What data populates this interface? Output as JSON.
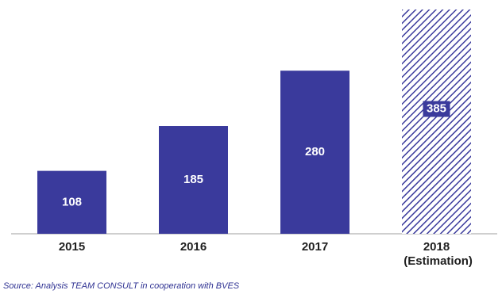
{
  "chart_data": {
    "type": "bar",
    "categories": [
      "2015",
      "2016",
      "2017",
      "2018 (Estimation)"
    ],
    "values": [
      108,
      185,
      280,
      385
    ],
    "hatched": [
      false,
      false,
      false,
      true
    ],
    "color": "#3a3a9c",
    "source": "Source: Analysis TEAM CONSULT in cooperation with BVES"
  }
}
